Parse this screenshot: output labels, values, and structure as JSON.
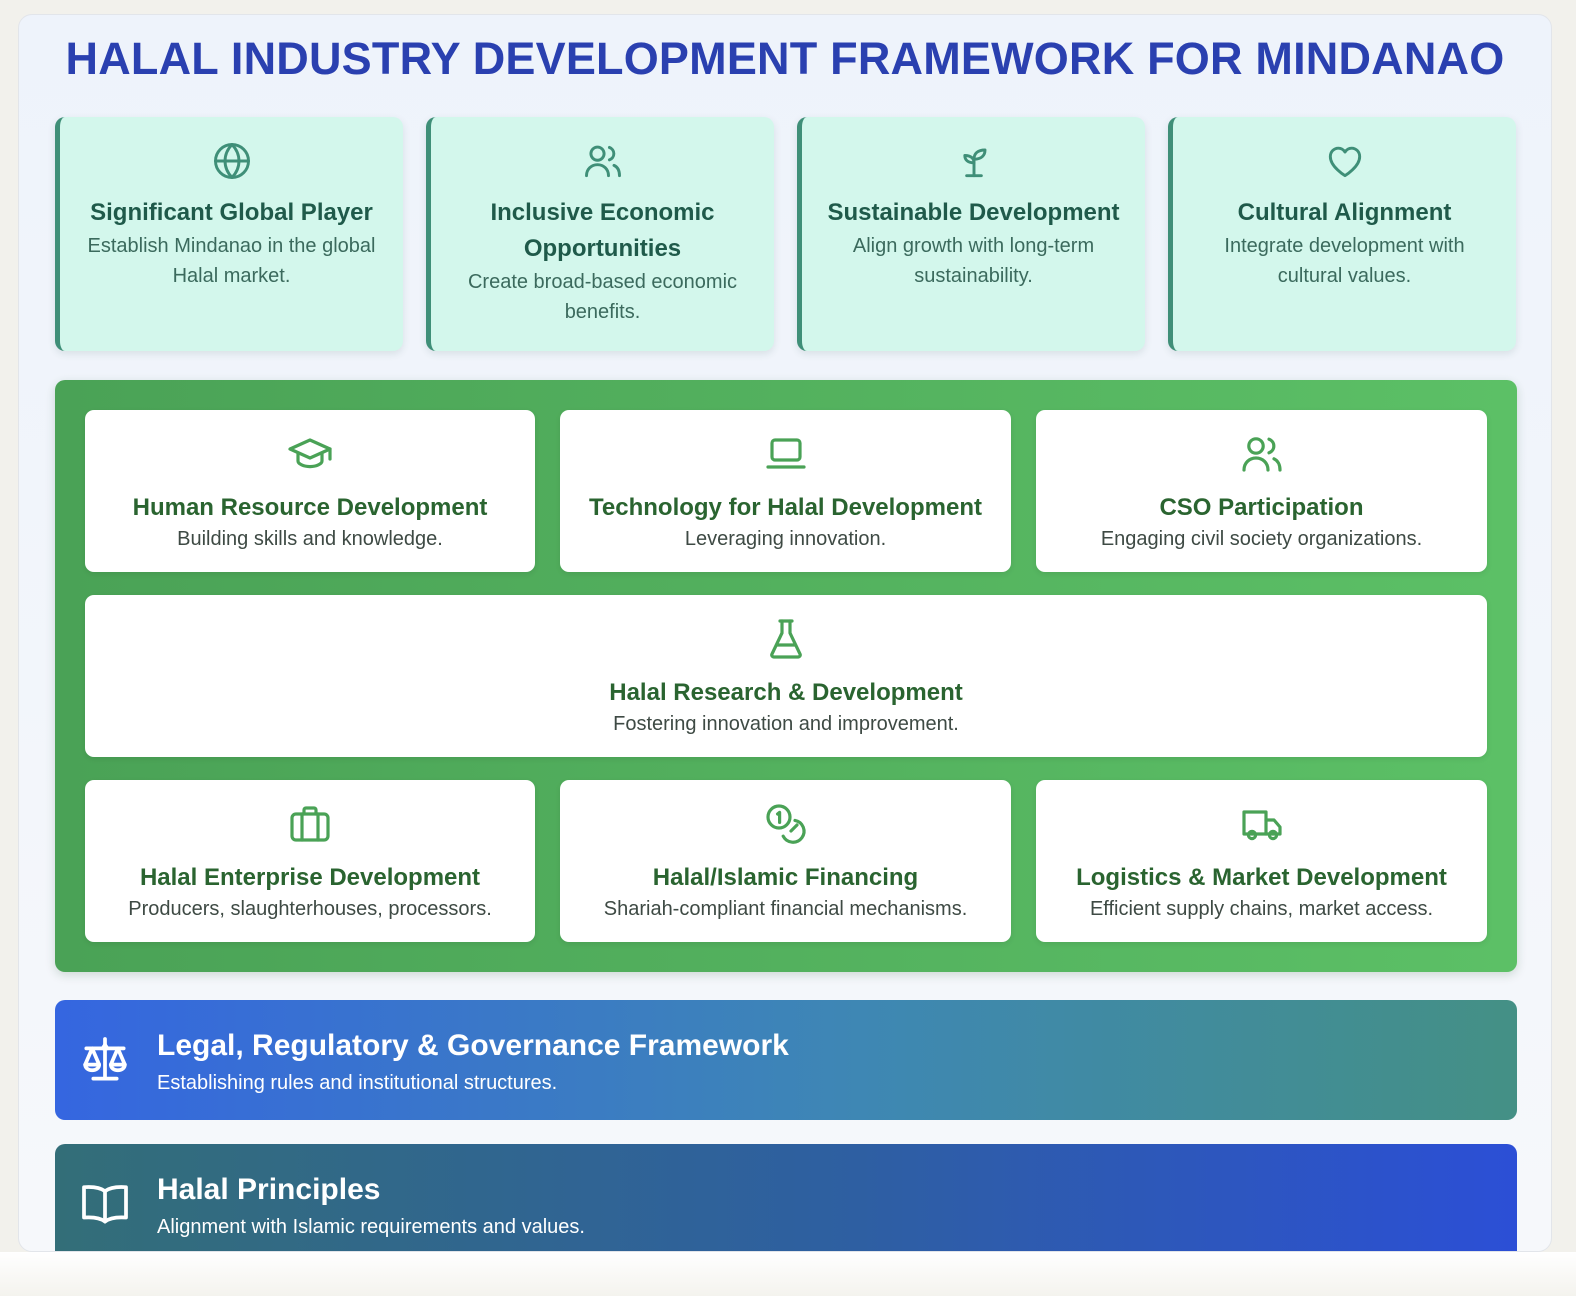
{
  "title": "HALAL INDUSTRY DEVELOPMENT FRAMEWORK FOR MINDANAO",
  "colors": {
    "title": "#2a40b0",
    "goal_bg": "#d3f7ec",
    "goal_accent": "#3f8f78",
    "pillar_bg": "#4fae5b",
    "pillar_text": "#2a6430",
    "legal_gradient": [
      "#3566e0",
      "#449085"
    ],
    "principles_gradient": [
      "#336e78",
      "#2c4fd6"
    ]
  },
  "goals": [
    {
      "icon": "globe-icon",
      "title": "Significant Global Player",
      "desc": "Establish Mindanao in the global Halal market."
    },
    {
      "icon": "users-icon",
      "title": "Inclusive Economic Opportunities",
      "desc": "Create broad-based economic benefits."
    },
    {
      "icon": "sprout-icon",
      "title": "Sustainable Development",
      "desc": "Align growth with long-term sustainability."
    },
    {
      "icon": "heart-icon",
      "title": "Cultural Alignment",
      "desc": "Integrate development with cultural values."
    }
  ],
  "pillars": [
    {
      "icon": "graduation-cap-icon",
      "title": "Human Resource Development",
      "desc": "Building skills and knowledge."
    },
    {
      "icon": "laptop-icon",
      "title": "Technology for Halal Development",
      "desc": "Leveraging innovation."
    },
    {
      "icon": "users-icon",
      "title": "CSO Participation",
      "desc": "Engaging civil society organizations."
    },
    {
      "icon": "flask-icon",
      "title": "Halal Research & Development",
      "desc": "Fostering innovation and improvement."
    },
    {
      "icon": "briefcase-icon",
      "title": "Halal Enterprise Development",
      "desc": "Producers, slaughterhouses, processors."
    },
    {
      "icon": "coins-icon",
      "title": "Halal/Islamic Financing",
      "desc": "Shariah-compliant financial mechanisms."
    },
    {
      "icon": "truck-icon",
      "title": "Logistics & Market Development",
      "desc": "Efficient supply chains, market access."
    }
  ],
  "foundation": {
    "legal": {
      "icon": "scale-icon",
      "title": "Legal, Regulatory & Governance Framework",
      "desc": "Establishing rules and institutional structures."
    },
    "principles": {
      "icon": "book-icon",
      "title": "Halal Principles",
      "desc": "Alignment with Islamic requirements and values."
    }
  }
}
